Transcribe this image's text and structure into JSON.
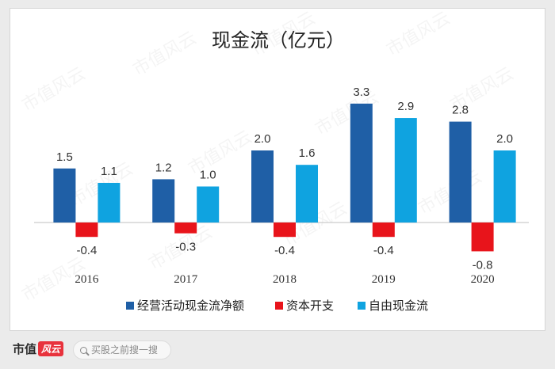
{
  "chart_data": {
    "type": "bar",
    "title": "现金流（亿元）",
    "categories": [
      "2016",
      "2017",
      "2018",
      "2019",
      "2020"
    ],
    "series": [
      {
        "name": "经营活动现金流净额",
        "values": [
          1.5,
          1.2,
          2.0,
          3.3,
          2.8
        ],
        "labels": [
          "1.5",
          "1.2",
          "2.0",
          "3.3",
          "2.8"
        ],
        "color": "#1f5fa6"
      },
      {
        "name": "资本开支",
        "values": [
          -0.4,
          -0.3,
          -0.4,
          -0.4,
          -0.8
        ],
        "labels": [
          "-0.4",
          "-0.3",
          "-0.4",
          "-0.4",
          "-0.8"
        ],
        "color": "#e8141b"
      },
      {
        "name": "自由现金流",
        "values": [
          1.1,
          1.0,
          1.6,
          2.9,
          2.0
        ],
        "labels": [
          "1.1",
          "1.0",
          "1.6",
          "2.9",
          "2.0"
        ],
        "color": "#0fa3e0"
      }
    ],
    "ylim": [
      -0.9,
      3.6
    ],
    "grid": false,
    "legend": "bottom",
    "watermark": "市值风云"
  },
  "footer": {
    "logo_text": "市值",
    "logo_badge": "风云",
    "search_placeholder": "买股之前搜一搜"
  }
}
